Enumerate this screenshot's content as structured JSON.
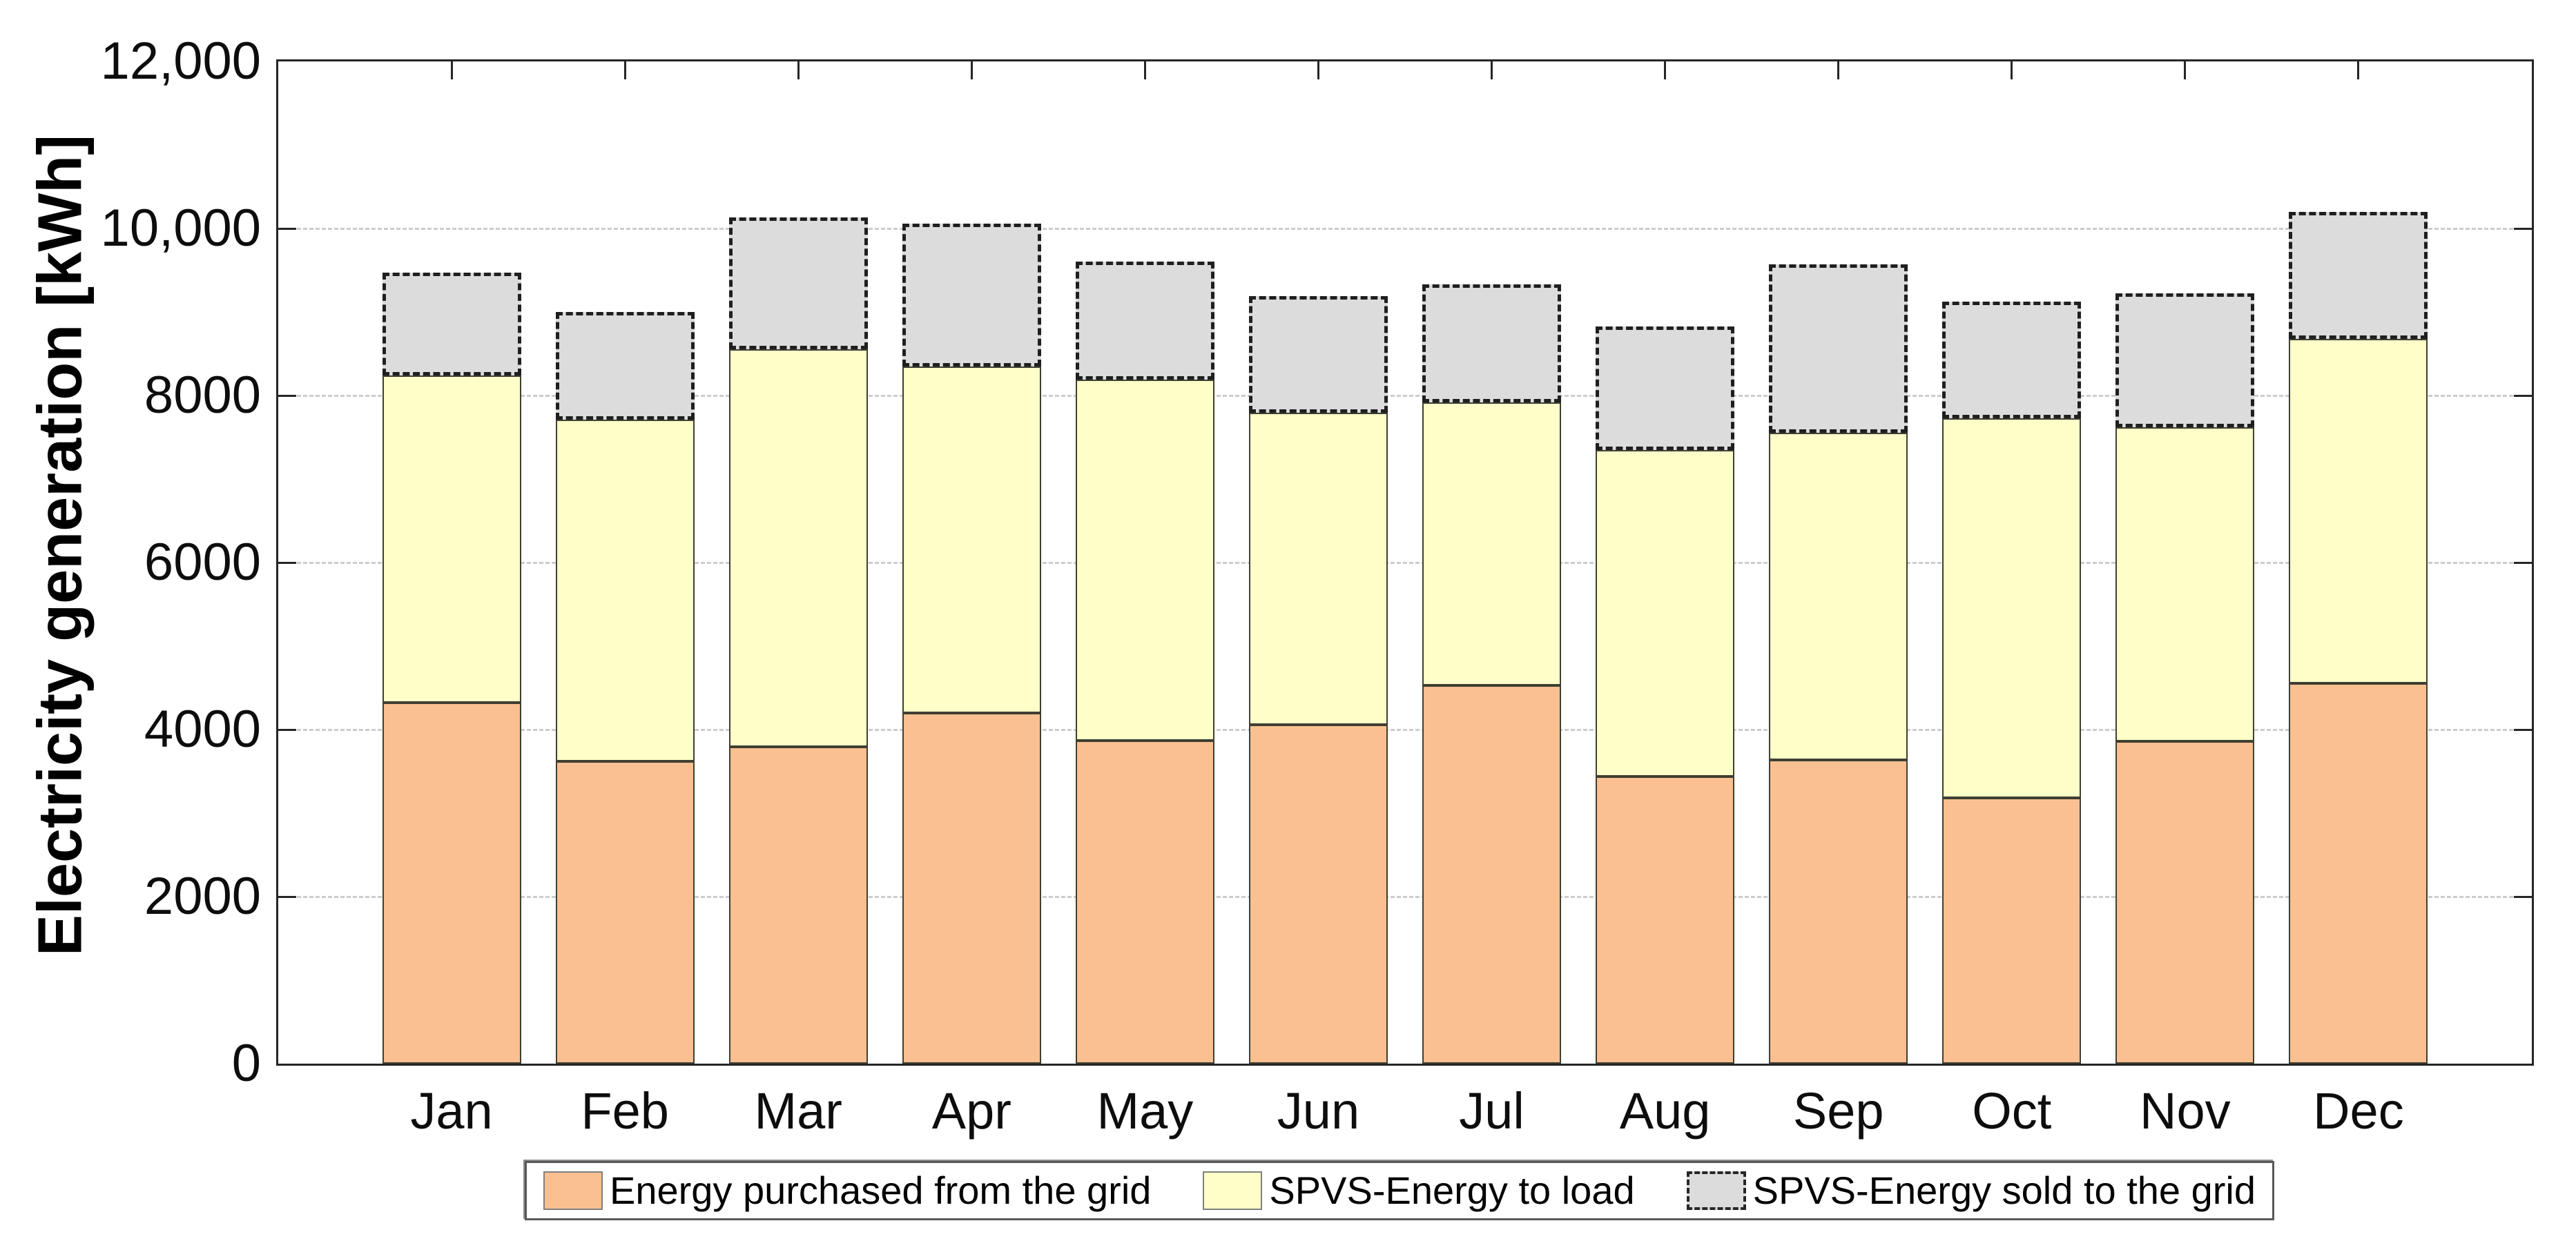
{
  "chart_data": {
    "type": "bar",
    "stacked": true,
    "categories": [
      "Jan",
      "Feb",
      "Mar",
      "Apr",
      "May",
      "Jun",
      "Jul",
      "Aug",
      "Sep",
      "Oct",
      "Nov",
      "Dec"
    ],
    "series": [
      {
        "name": "Energy purchased from the grid",
        "color": "#FAC091",
        "border_style": "solid",
        "values": [
          4320,
          3620,
          3790,
          4200,
          3870,
          4060,
          4530,
          3440,
          3640,
          3180,
          3860,
          4550
        ]
      },
      {
        "name": "SPVS-Energy to load",
        "color": "#FEFFC8",
        "border_style": "solid",
        "values": [
          3920,
          4090,
          4760,
          4150,
          4320,
          3730,
          3390,
          3910,
          3910,
          4550,
          3760,
          4130
        ]
      },
      {
        "name": "SPVS-Energy sold to the grid",
        "color": "#DCDCDC",
        "border_style": "dashed",
        "values": [
          1230,
          1290,
          1580,
          1710,
          1410,
          1400,
          1410,
          1480,
          2020,
          1390,
          1600,
          1520
        ]
      }
    ],
    "title": "",
    "xlabel": "",
    "ylabel": "Electricity generation [kWh]",
    "ylim": [
      0,
      12000
    ],
    "ytick_step": 2000,
    "ytick_labels": [
      "0",
      "2000",
      "4000",
      "6000",
      "8000",
      "10,000",
      "12,000"
    ],
    "grid": "horizontal-dashed",
    "legend_position": "bottom",
    "accent_colors": {
      "axis": "#262626",
      "gridline": "#cccccc",
      "dashed_outline": "#1f1f1f"
    }
  }
}
